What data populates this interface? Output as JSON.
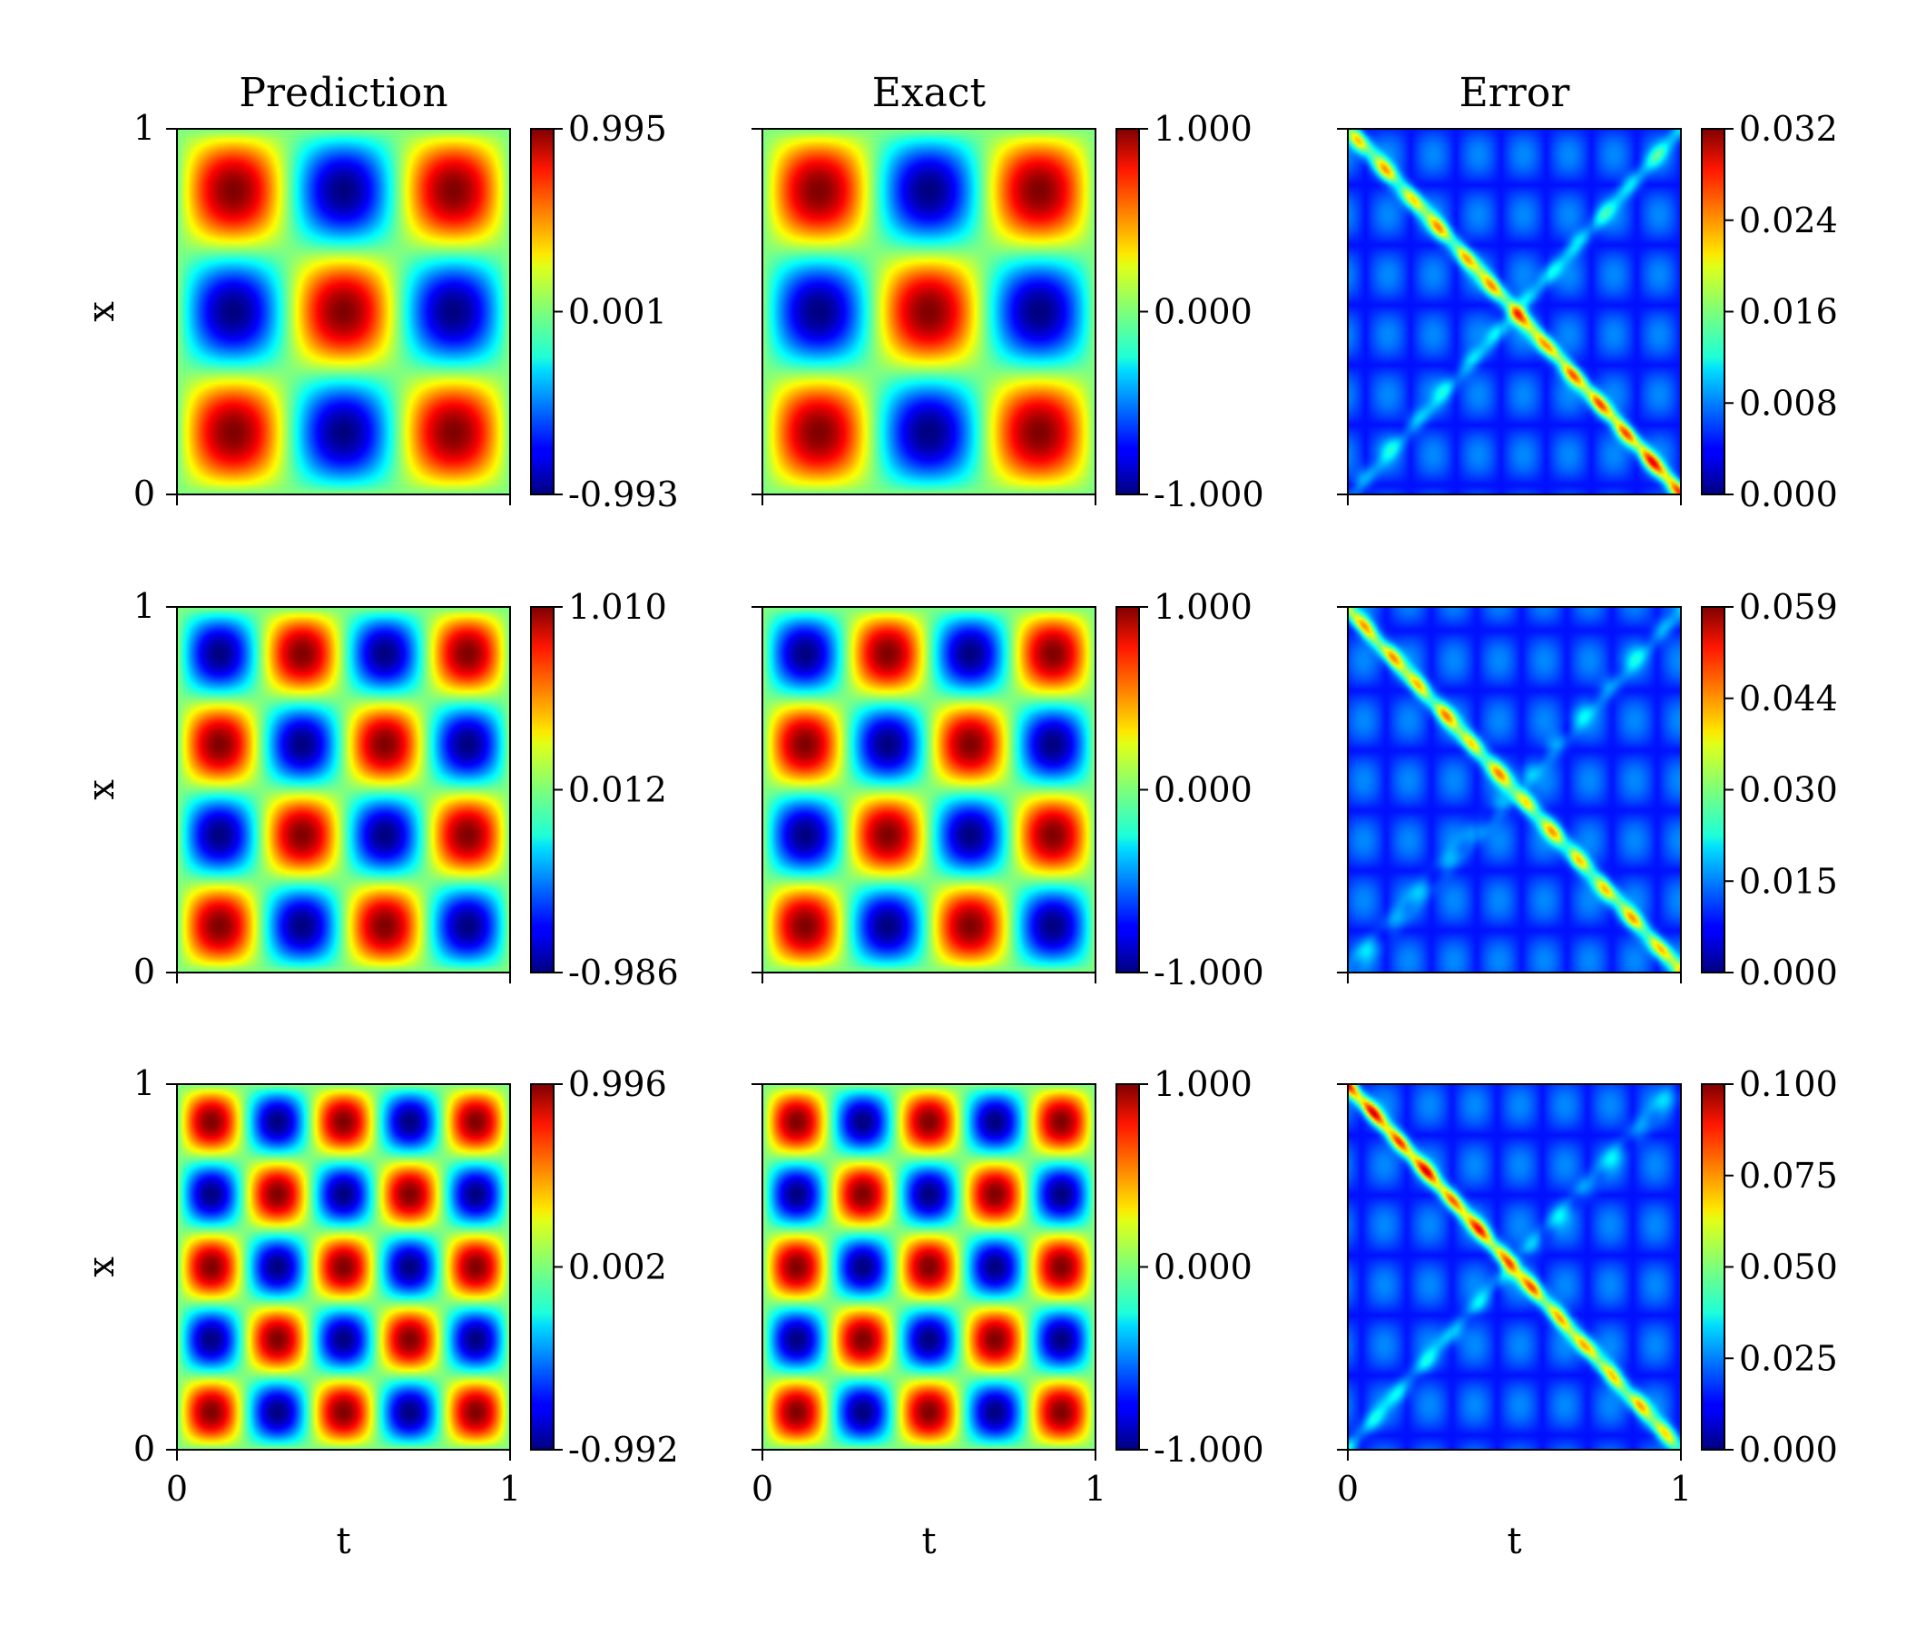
{
  "chart_data": {
    "type": "heatmap",
    "colormap": "jet",
    "grid": false,
    "columns": [
      "Prediction",
      "Exact",
      "Error"
    ],
    "xlabel": "t",
    "ylabel": "x",
    "x_range": [
      0,
      1
    ],
    "y_range": [
      0,
      1
    ],
    "x_ticks": [
      "0",
      "1"
    ],
    "y_ticks": [
      "0",
      "1"
    ],
    "rows": [
      {
        "mode_t": 3,
        "mode_x": 3,
        "panels": [
          {
            "name": "Prediction",
            "kind": "field",
            "vmin": -0.993,
            "vmax": 0.995,
            "colorbar_ticks": [
              "0.995",
              "0.001",
              "-0.993"
            ]
          },
          {
            "name": "Exact",
            "kind": "field",
            "vmin": -1.0,
            "vmax": 1.0,
            "colorbar_ticks": [
              "1.000",
              "0.000",
              "-1.000"
            ]
          },
          {
            "name": "Error",
            "kind": "error",
            "vmin": 0.0,
            "vmax": 0.032,
            "colorbar_ticks": [
              "0.032",
              "0.024",
              "0.016",
              "0.008",
              "0.000"
            ]
          }
        ]
      },
      {
        "mode_t": 4,
        "mode_x": 4,
        "panels": [
          {
            "name": "Prediction",
            "kind": "field",
            "vmin": -0.986,
            "vmax": 1.01,
            "colorbar_ticks": [
              "1.010",
              "0.012",
              "-0.986"
            ]
          },
          {
            "name": "Exact",
            "kind": "field",
            "vmin": -1.0,
            "vmax": 1.0,
            "colorbar_ticks": [
              "1.000",
              "0.000",
              "-1.000"
            ]
          },
          {
            "name": "Error",
            "kind": "error",
            "vmin": 0.0,
            "vmax": 0.059,
            "colorbar_ticks": [
              "0.059",
              "0.044",
              "0.030",
              "0.015",
              "0.000"
            ]
          }
        ]
      },
      {
        "mode_t": 5,
        "mode_x": 5,
        "panels": [
          {
            "name": "Prediction",
            "kind": "field",
            "vmin": -0.992,
            "vmax": 0.996,
            "colorbar_ticks": [
              "0.996",
              "0.002",
              "-0.992"
            ]
          },
          {
            "name": "Exact",
            "kind": "field",
            "vmin": -1.0,
            "vmax": 1.0,
            "colorbar_ticks": [
              "1.000",
              "0.000",
              "-1.000"
            ]
          },
          {
            "name": "Error",
            "kind": "error",
            "vmin": 0.0,
            "vmax": 0.1,
            "colorbar_ticks": [
              "0.100",
              "0.075",
              "0.050",
              "0.025",
              "0.000"
            ]
          }
        ]
      }
    ]
  }
}
